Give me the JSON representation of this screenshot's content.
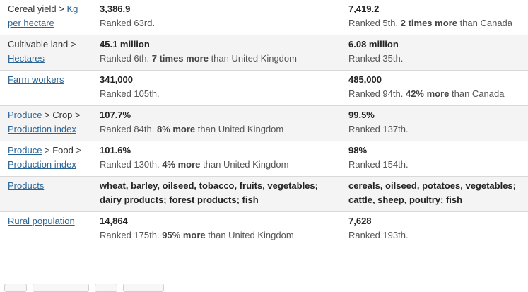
{
  "rows": [
    {
      "label_parts": [
        {
          "text": "Cereal yield",
          "link": false
        },
        {
          "text": " > ",
          "link": false
        },
        {
          "text": "Kg",
          "link": true
        }
      ],
      "label_line2": "per hectare",
      "col1": {
        "value": "3,386.9",
        "rank": "Ranked 63rd.",
        "bold": "",
        "tail": ""
      },
      "col2": {
        "value": "7,419.2",
        "rank": "Ranked 5th.",
        "bold": "2 times more",
        "tail": "than Canada"
      }
    },
    {
      "label_parts": [
        {
          "text": "Cultivable land",
          "link": false
        },
        {
          "text": " >",
          "link": false
        }
      ],
      "label_line2": "Hectares",
      "col1": {
        "value": "45.1 million",
        "rank": "Ranked 6th.",
        "bold": "7 times more",
        "tail": "than United Kingdom"
      },
      "col2": {
        "value": "6.08 million",
        "rank": "Ranked 35th.",
        "bold": "",
        "tail": ""
      }
    },
    {
      "label_parts": [
        {
          "text": "Farm workers",
          "link": true
        }
      ],
      "label_line2": "",
      "col1": {
        "value": "341,000",
        "rank": "Ranked 105th.",
        "bold": "",
        "tail": ""
      },
      "col2": {
        "value": "485,000",
        "rank": "Ranked 94th.",
        "bold": "42% more",
        "tail": "than Canada"
      }
    },
    {
      "label_parts": [
        {
          "text": "Produce",
          "link": true
        },
        {
          "text": " > Crop >",
          "link": false
        }
      ],
      "label_line2": "Production index",
      "col1": {
        "value": "107.7%",
        "rank": "Ranked 84th.",
        "bold": "8% more",
        "tail": "than United Kingdom"
      },
      "col2": {
        "value": "99.5%",
        "rank": "Ranked 137th.",
        "bold": "",
        "tail": ""
      }
    },
    {
      "label_parts": [
        {
          "text": "Produce",
          "link": true
        },
        {
          "text": " > Food >",
          "link": false
        }
      ],
      "label_line2": "Production index",
      "col1": {
        "value": "101.6%",
        "rank": "Ranked 130th.",
        "bold": "4% more",
        "tail": "than United Kingdom"
      },
      "col2": {
        "value": "98%",
        "rank": "Ranked 154th.",
        "bold": "",
        "tail": ""
      }
    },
    {
      "label_parts": [
        {
          "text": "Products",
          "link": true
        }
      ],
      "label_line2": "",
      "col1": {
        "value": "wheat, barley, oilseed, tobacco, fruits, vegetables; dairy products; forest products; fish",
        "rank": "",
        "bold": "",
        "tail": ""
      },
      "col2": {
        "value": "cereals, oilseed, potatoes, vegetables; cattle, sheep, poultry; fish",
        "rank": "",
        "bold": "",
        "tail": ""
      }
    },
    {
      "label_parts": [
        {
          "text": "Rural population",
          "link": true
        }
      ],
      "label_line2": "",
      "col1": {
        "value": "14,864",
        "rank": "Ranked 175th.",
        "bold": "95% more",
        "tail": "than United Kingdom"
      },
      "col2": {
        "value": "7,628",
        "rank": "Ranked 193th.",
        "bold": "",
        "tail": ""
      }
    }
  ]
}
